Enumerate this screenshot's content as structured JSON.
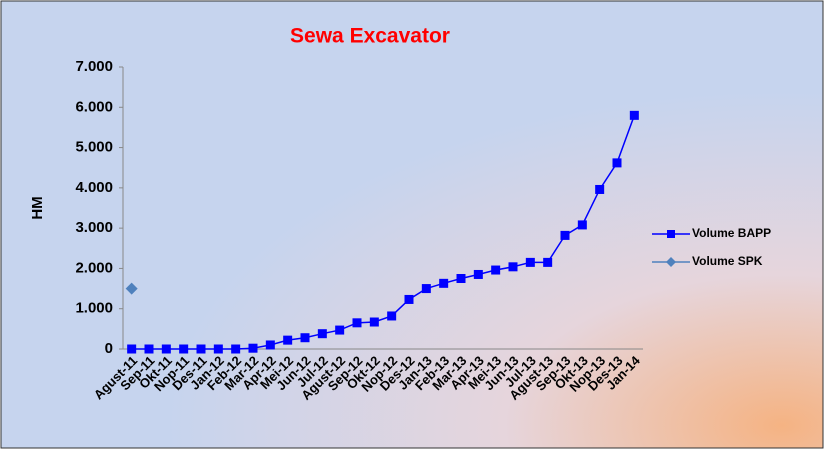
{
  "chart_data": {
    "type": "line",
    "title": "Sewa Excavator",
    "y_label": "HM",
    "categories": [
      "Agust-11",
      "Sep-11",
      "Okt-11",
      "Nop-11",
      "Des-11",
      "Jan-12",
      "Feb-12",
      "Mar-12",
      "Apr-12",
      "Mei-12",
      "Jun-12",
      "Jul-12",
      "Agust-12",
      "Sep-12",
      "Okt-12",
      "Nop-12",
      "Des-12",
      "Jan-13",
      "Feb-13",
      "Mar-13",
      "Apr-13",
      "Mei-13",
      "Jun-13",
      "Jul-13",
      "Agust-13",
      "Sep-13",
      "Okt-13",
      "Nop-13",
      "Des-13",
      "Jan-14"
    ],
    "series": [
      {
        "name": "Volume BAPP",
        "color": "#0000ff",
        "marker": "square",
        "values": [
          0,
          0,
          0,
          0,
          0,
          0,
          0,
          20,
          100,
          220,
          280,
          380,
          470,
          650,
          670,
          820,
          1230,
          1500,
          1630,
          1750,
          1850,
          1960,
          2040,
          2150,
          2150,
          2820,
          3080,
          3960,
          4620,
          5800
        ]
      },
      {
        "name": "Volume SPK",
        "color": "#4f81bd",
        "marker": "diamond",
        "values": [
          1500,
          null,
          null,
          null,
          null,
          null,
          null,
          null,
          null,
          null,
          null,
          null,
          null,
          null,
          null,
          null,
          null,
          null,
          null,
          null,
          null,
          null,
          null,
          null,
          null,
          null,
          null,
          null,
          null,
          null
        ]
      }
    ],
    "ylim": [
      0,
      7000
    ],
    "yticks": [
      0,
      {
        "value": 1000,
        "label": "1.000"
      },
      {
        "value": 2000,
        "label": "2.000"
      },
      {
        "value": 3000,
        "label": "3.000"
      },
      {
        "value": 4000,
        "label": "4.000"
      },
      {
        "value": 5000,
        "label": "5.000"
      },
      {
        "value": 6000,
        "label": "6.000"
      },
      {
        "value": 7000,
        "label": "7.000"
      }
    ],
    "legend": "right"
  }
}
